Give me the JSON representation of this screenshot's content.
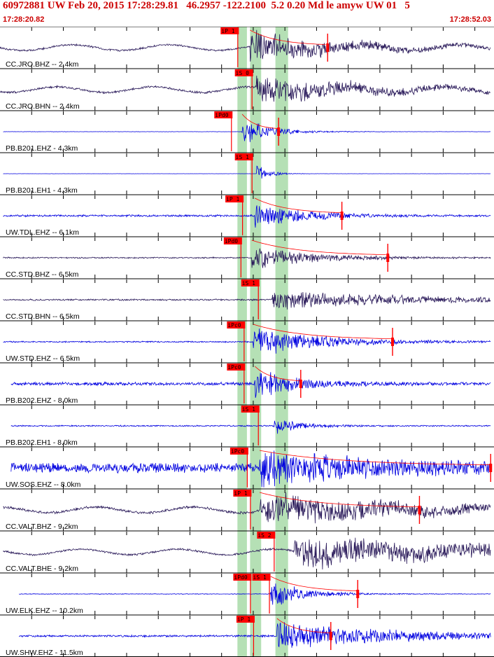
{
  "header": {
    "title": "60972881 UW Feb 20, 2015 17:28:29.81   46.2957 -122.2100  5.2 0.20 Md le amyw UW 01   5",
    "start_time": "17:28:20.82",
    "end_time": "17:28:52.03"
  },
  "colors": {
    "header": "#cc0000",
    "trace_bh": "#2a1a5a",
    "trace_eh": "#0000e0",
    "pick": "#ff0000",
    "band": "#b5e0b5",
    "grid": "#000000"
  },
  "chart_data": {
    "type": "seismogram",
    "x_unit": "seconds",
    "x_range": [
      0,
      31.21
    ],
    "tick_interval_s": 2,
    "green_bands_s": [
      [
        15.0,
        15.6
      ],
      [
        15.8,
        16.5
      ],
      [
        17.4,
        18.2
      ]
    ],
    "traces": [
      {
        "label": "CC.JRO.BHZ --  2.4km",
        "type": "BH",
        "pick": "iP 1",
        "pick_s": 15.0,
        "onset_s": 15.8,
        "amp": 0.9,
        "noise": 0.06,
        "decay": 0.18,
        "range_s": [
          0,
          31
        ],
        "coda_s": 20.7,
        "long_period": true
      },
      {
        "label": "CC.JRO.BHN --  2.4km",
        "type": "BH",
        "pick": "iS 0",
        "pick_s": 15.9,
        "onset_s": 16.2,
        "amp": 0.8,
        "noise": 0.07,
        "decay": 0.15,
        "range_s": [
          0,
          31
        ],
        "long_period": true
      },
      {
        "label": "PB.B201.EHZ -  4.3km",
        "type": "EH",
        "pick": "iPd0",
        "pick_s": 14.6,
        "onset_s": 15.3,
        "amp": 0.9,
        "noise": 0.01,
        "decay": 0.6,
        "range_s": [
          0.2,
          31
        ],
        "coda_s": 17.6
      },
      {
        "label": "PB.B201.EH1 -  4.3km",
        "type": "EH",
        "pick": "iS 1",
        "pick_s": 15.9,
        "onset_s": 16.2,
        "amp": 0.7,
        "noise": 0.005,
        "decay": 1.5,
        "range_s": [
          0.2,
          31
        ]
      },
      {
        "label": "UW.TDL.EHZ --  6.1km",
        "type": "EH",
        "pick": "iP 1",
        "pick_s": 15.3,
        "onset_s": 16.1,
        "amp": 0.8,
        "noise": 0.06,
        "decay": 0.35,
        "range_s": [
          0.2,
          31
        ],
        "coda_s": 21.6
      },
      {
        "label": "CC.STD.BHZ --  6.5km",
        "type": "BH",
        "pick": "iPd0",
        "pick_s": 15.2,
        "onset_s": 15.9,
        "amp": 0.8,
        "noise": 0.04,
        "decay": 0.3,
        "range_s": [
          0.2,
          31
        ],
        "coda_s": 24.5
      },
      {
        "label": "CC.STD.BHN --  6.5km",
        "type": "BH",
        "pick": "iS 1",
        "pick_s": 16.3,
        "onset_s": 17.2,
        "amp": 0.6,
        "noise": 0.05,
        "decay": 0.12,
        "range_s": [
          0.2,
          31
        ]
      },
      {
        "label": "UW.STD.EHZ --  6.5km",
        "type": "EH",
        "pick": "iPc0",
        "pick_s": 15.4,
        "onset_s": 16.0,
        "amp": 1.0,
        "noise": 0.04,
        "decay": 0.25,
        "range_s": [
          0.2,
          31
        ],
        "coda_s": 24.8
      },
      {
        "label": "PB.B202.EHZ -  8.0km",
        "type": "EH",
        "pick": "iPc0",
        "pick_s": 15.4,
        "onset_s": 16.1,
        "amp": 0.9,
        "noise": 0.1,
        "decay": 0.4,
        "range_s": [
          0.7,
          31
        ],
        "coda_s": 19.0
      },
      {
        "label": "PB.B202.EH1 -  8.0km",
        "type": "EH",
        "pick": "iS 1",
        "pick_s": 16.3,
        "onset_s": 17.3,
        "amp": 0.5,
        "noise": 0.04,
        "decay": 0.6,
        "range_s": [
          0.7,
          31
        ]
      },
      {
        "label": "UW.SOS.EHZ --  8.0km",
        "type": "EH",
        "pick": "iPc0",
        "pick_s": 15.6,
        "onset_s": 16.4,
        "amp": 1.0,
        "noise": 0.3,
        "decay": 0.15,
        "range_s": [
          0.7,
          31
        ],
        "coda_s": 31.0
      },
      {
        "label": "CC.VALT.BHZ -  9.2km",
        "type": "BH",
        "pick": "iP 1",
        "pick_s": 15.8,
        "onset_s": 16.4,
        "amp": 1.0,
        "noise": 0.08,
        "decay": 0.1,
        "range_s": [
          0.2,
          31
        ],
        "coda_s": 26.5,
        "long_period": true
      },
      {
        "label": "CC.VALT.BHE -  9.2km",
        "type": "BH",
        "pick": "iS 2",
        "pick_s": 17.3,
        "onset_s": 18.6,
        "amp": 0.9,
        "noise": 0.06,
        "decay": 0.07,
        "range_s": [
          0.2,
          31
        ],
        "long_period": true
      },
      {
        "label": "UW.ELK.EHZ -- 10.2km",
        "type": "EH",
        "pick": "iPd0",
        "pick_s": 15.8,
        "pick2": "iS 1",
        "pick2_s": 17.0,
        "onset_s": 17.1,
        "amp": 0.9,
        "noise": 0.02,
        "decay": 0.5,
        "range_s": [
          1.2,
          31
        ],
        "coda_s": 22.6
      },
      {
        "label": "UW.SHW.EHZ -  11.5km",
        "type": "EH",
        "pick": "iP 1",
        "pick_s": 16.0,
        "onset_s": 17.5,
        "amp": 0.9,
        "noise": 0.06,
        "decay": 0.14,
        "range_s": [
          1.2,
          31
        ],
        "coda_s": 20.9
      }
    ]
  }
}
